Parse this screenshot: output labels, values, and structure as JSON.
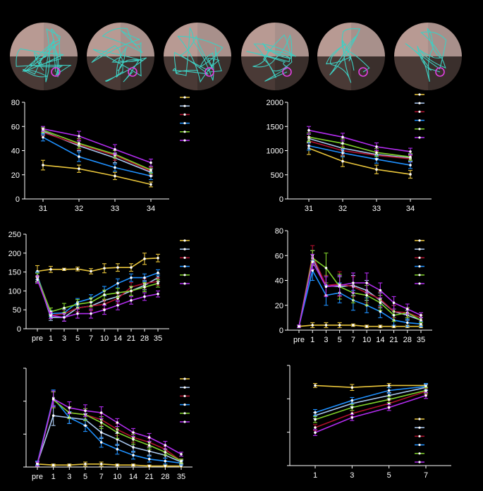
{
  "colors": {
    "background": "#000000",
    "axis": "#ffffff",
    "series": [
      "#e8c43a",
      "#a9c7ef",
      "#b0102e",
      "#1e90ff",
      "#7fd12a",
      "#b32cf0"
    ]
  },
  "maze_panel": {
    "count": 6,
    "quadrant_colors": [
      "#b89a93",
      "#a8908b",
      "#4a3a36",
      "#3a2f2c"
    ],
    "path_color": "#3ecfc3",
    "platform_color": "#e040e0"
  },
  "chart_data": [
    {
      "type": "line",
      "categories": [
        "31",
        "32",
        "33",
        "34"
      ],
      "ylim": [
        0,
        80
      ],
      "yticks": [
        "0",
        "20",
        "40",
        "60",
        "80"
      ],
      "series": [
        {
          "values": [
            28,
            25,
            19,
            12
          ],
          "err": [
            4,
            3,
            3,
            2
          ]
        },
        {
          "values": [
            56,
            44,
            34,
            22
          ],
          "err": [
            3,
            4,
            4,
            3
          ]
        },
        {
          "values": [
            55,
            45,
            36,
            23
          ],
          "err": [
            3,
            4,
            4,
            3
          ]
        },
        {
          "values": [
            51,
            35,
            26,
            19
          ],
          "err": [
            3,
            4,
            3,
            3
          ]
        },
        {
          "values": [
            57,
            46,
            37,
            24
          ],
          "err": [
            2,
            4,
            3,
            3
          ]
        },
        {
          "values": [
            58,
            52,
            41,
            30
          ],
          "err": [
            2,
            4,
            4,
            3
          ]
        }
      ]
    },
    {
      "type": "line",
      "categories": [
        "31",
        "32",
        "33",
        "34"
      ],
      "ylim": [
        0,
        2000
      ],
      "yticks": [
        "0",
        "500",
        "1000",
        "1500",
        "2000"
      ],
      "series": [
        {
          "values": [
            1050,
            780,
            610,
            510
          ],
          "err": [
            130,
            110,
            90,
            80
          ]
        },
        {
          "values": [
            1250,
            1050,
            920,
            850
          ],
          "err": [
            90,
            90,
            80,
            70
          ]
        },
        {
          "values": [
            1200,
            1000,
            900,
            830
          ],
          "err": [
            90,
            90,
            80,
            70
          ]
        },
        {
          "values": [
            1100,
            950,
            820,
            700
          ],
          "err": [
            90,
            80,
            80,
            70
          ]
        },
        {
          "values": [
            1280,
            1150,
            960,
            870
          ],
          "err": [
            90,
            90,
            80,
            70
          ]
        },
        {
          "values": [
            1420,
            1280,
            1080,
            980
          ],
          "err": [
            80,
            80,
            80,
            70
          ]
        }
      ]
    },
    {
      "type": "line",
      "categories": [
        "pre",
        "1",
        "3",
        "5",
        "7",
        "10",
        "14",
        "21",
        "28",
        "35"
      ],
      "ylim": [
        0,
        250
      ],
      "yticks": [
        "0",
        "50",
        "100",
        "150",
        "200",
        "250"
      ],
      "series": [
        {
          "values": [
            152,
            157,
            157,
            158,
            152,
            160,
            162,
            162,
            185,
            187
          ],
          "err": [
            15,
            8,
            3,
            5,
            7,
            12,
            10,
            10,
            15,
            10
          ]
        },
        {
          "values": [
            137,
            30,
            30,
            55,
            60,
            75,
            85,
            100,
            115,
            135
          ],
          "err": [
            12,
            8,
            10,
            10,
            12,
            12,
            12,
            12,
            12,
            10
          ]
        },
        {
          "values": [
            140,
            35,
            40,
            55,
            60,
            65,
            80,
            110,
            120,
            125
          ],
          "err": [
            10,
            8,
            10,
            10,
            12,
            12,
            12,
            12,
            12,
            10
          ]
        },
        {
          "values": [
            140,
            40,
            42,
            70,
            80,
            100,
            120,
            135,
            135,
            148
          ],
          "err": [
            10,
            8,
            10,
            10,
            10,
            12,
            12,
            10,
            10,
            8
          ]
        },
        {
          "values": [
            135,
            45,
            55,
            65,
            70,
            90,
            95,
            100,
            110,
            120
          ],
          "err": [
            12,
            10,
            12,
            12,
            12,
            12,
            12,
            12,
            12,
            10
          ]
        },
        {
          "values": [
            130,
            35,
            30,
            40,
            40,
            50,
            62,
            75,
            85,
            92
          ],
          "err": [
            10,
            8,
            10,
            12,
            12,
            12,
            12,
            10,
            10,
            8
          ]
        }
      ]
    },
    {
      "type": "line",
      "categories": [
        "pre",
        "1",
        "3",
        "5",
        "7",
        "10",
        "14",
        "21",
        "28",
        "35"
      ],
      "ylim": [
        0,
        80
      ],
      "yticks": [
        "0",
        "20",
        "40",
        "60",
        "80"
      ],
      "series": [
        {
          "values": [
            3,
            4,
            4,
            4,
            4,
            3,
            3,
            3,
            3,
            3
          ],
          "err": [
            1,
            2,
            2,
            2,
            1,
            1,
            1,
            1,
            1,
            1
          ]
        },
        {
          "values": [
            3,
            58,
            36,
            35,
            36,
            32,
            24,
            15,
            12,
            8
          ],
          "err": [
            1,
            6,
            8,
            8,
            8,
            8,
            6,
            5,
            4,
            2
          ]
        },
        {
          "values": [
            3,
            60,
            36,
            37,
            35,
            30,
            25,
            15,
            14,
            10
          ],
          "err": [
            1,
            8,
            8,
            10,
            8,
            8,
            6,
            5,
            4,
            2
          ]
        },
        {
          "values": [
            3,
            48,
            28,
            30,
            24,
            20,
            15,
            8,
            6,
            5
          ],
          "err": [
            1,
            8,
            8,
            8,
            8,
            6,
            5,
            4,
            3,
            2
          ]
        },
        {
          "values": [
            3,
            58,
            50,
            35,
            30,
            28,
            22,
            12,
            14,
            8
          ],
          "err": [
            1,
            6,
            12,
            10,
            8,
            8,
            6,
            5,
            4,
            2
          ]
        },
        {
          "values": [
            3,
            55,
            35,
            36,
            38,
            38,
            32,
            22,
            17,
            12
          ],
          "err": [
            1,
            6,
            8,
            8,
            8,
            8,
            6,
            5,
            4,
            2
          ]
        }
      ]
    },
    {
      "type": "line",
      "categories": [
        "pre",
        "1",
        "3",
        "5",
        "7",
        "10",
        "14",
        "21",
        "28",
        "35"
      ],
      "ylim": [
        0,
        100
      ],
      "yticks": [
        "",
        "",
        "",
        ""
      ],
      "series": [
        {
          "values": [
            3,
            2,
            2,
            3,
            3,
            2,
            2,
            1,
            1,
            1
          ],
          "err": [
            2,
            1,
            1,
            2,
            2,
            1,
            1,
            1,
            1,
            1
          ]
        },
        {
          "values": [
            4,
            52,
            50,
            48,
            35,
            28,
            20,
            16,
            12,
            5
          ],
          "err": [
            2,
            10,
            6,
            6,
            6,
            6,
            5,
            4,
            3,
            2
          ]
        },
        {
          "values": [
            3,
            68,
            55,
            53,
            48,
            38,
            30,
            25,
            18,
            6
          ],
          "err": [
            2,
            8,
            6,
            6,
            6,
            6,
            5,
            4,
            3,
            2
          ]
        },
        {
          "values": [
            4,
            70,
            50,
            42,
            25,
            18,
            12,
            8,
            6,
            4
          ],
          "err": [
            2,
            8,
            6,
            6,
            5,
            5,
            4,
            3,
            3,
            2
          ]
        },
        {
          "values": [
            3,
            68,
            55,
            53,
            45,
            35,
            28,
            22,
            15,
            6
          ],
          "err": [
            2,
            8,
            6,
            6,
            6,
            6,
            5,
            4,
            3,
            2
          ]
        },
        {
          "values": [
            3,
            69,
            60,
            57,
            55,
            45,
            35,
            30,
            22,
            13
          ],
          "err": [
            2,
            8,
            6,
            6,
            6,
            4,
            4,
            4,
            4,
            2
          ]
        }
      ]
    },
    {
      "type": "line",
      "categories": [
        "1",
        "3",
        "5",
        "7"
      ],
      "ylim": [
        0,
        100
      ],
      "yticks": [
        "",
        "",
        "",
        ""
      ],
      "series": [
        {
          "values": [
            80,
            78,
            80,
            80
          ],
          "err": [
            2,
            3,
            2,
            2
          ]
        },
        {
          "values": [
            50,
            62,
            70,
            78
          ],
          "err": [
            3,
            3,
            3,
            3
          ]
        },
        {
          "values": [
            38,
            52,
            62,
            74
          ],
          "err": [
            3,
            3,
            3,
            3
          ]
        },
        {
          "values": [
            53,
            65,
            75,
            79
          ],
          "err": [
            3,
            3,
            3,
            3
          ]
        },
        {
          "values": [
            46,
            58,
            66,
            75
          ],
          "err": [
            3,
            3,
            3,
            3
          ]
        },
        {
          "values": [
            33,
            48,
            58,
            70
          ],
          "err": [
            3,
            3,
            3,
            3
          ]
        }
      ]
    }
  ]
}
